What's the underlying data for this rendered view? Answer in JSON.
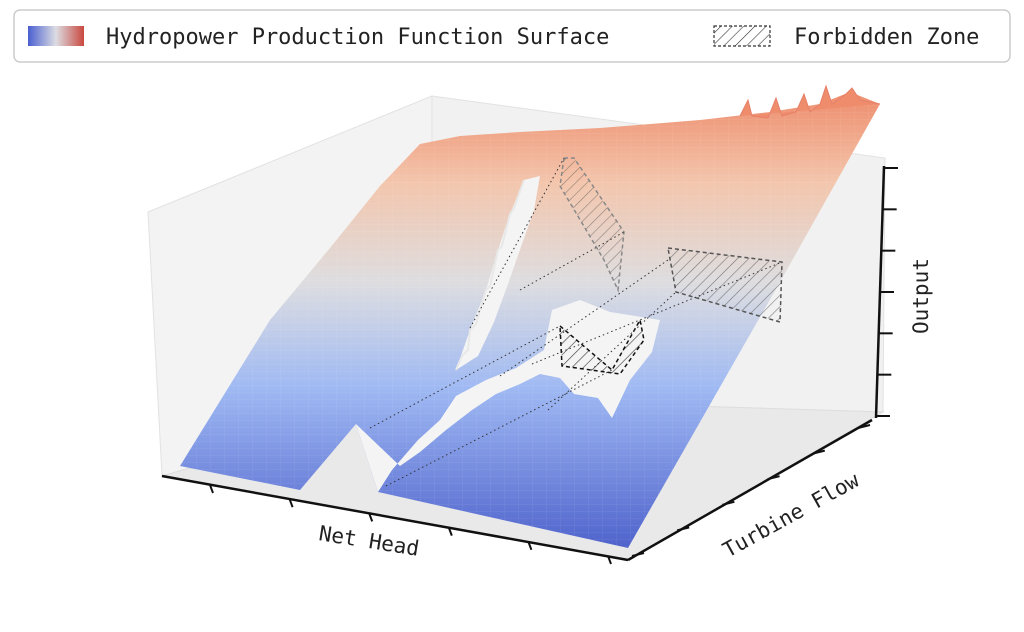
{
  "chart_data": {
    "type": "surface3d",
    "title": "",
    "xlabel": "Net Head",
    "ylabel": "Turbine Flow",
    "zlabel": "Output",
    "legend": {
      "placement": "top",
      "entries": [
        {
          "label": "Hydropower Production Function Surface",
          "kind": "colormap"
        },
        {
          "label": "Forbidden Zone",
          "kind": "hatch"
        }
      ]
    },
    "colormap": "coolwarm",
    "colors": {
      "low": "#5570d6",
      "mid": "#dcdde2",
      "high": "#f0a286",
      "hatch": "#444444"
    },
    "x_ticks": 6,
    "y_ticks": 6,
    "z_ticks": 7,
    "tick_labels_visible": false,
    "forbidden_zones": 3,
    "grid": false
  }
}
